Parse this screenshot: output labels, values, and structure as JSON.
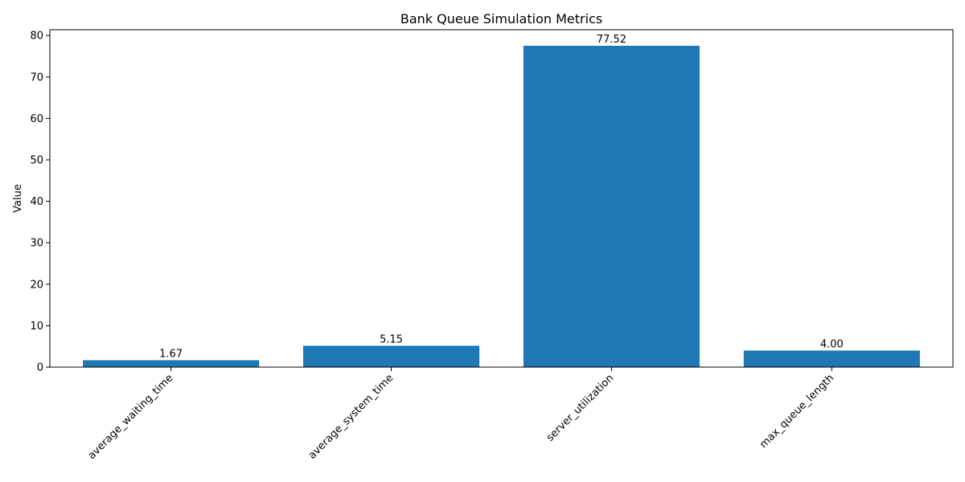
{
  "chart_data": {
    "type": "bar",
    "title": "Bank Queue Simulation Metrics",
    "xlabel": "",
    "ylabel": "Value",
    "categories": [
      "average_waiting_time",
      "average_system_time",
      "server_utilization",
      "max_queue_length"
    ],
    "values": [
      1.67,
      5.15,
      77.52,
      4.0
    ],
    "data_labels": [
      "1.67",
      "5.15",
      "77.52",
      "4.00"
    ],
    "yticks": [
      0,
      10,
      20,
      30,
      40,
      50,
      60,
      70,
      80
    ],
    "ylim": [
      0,
      81.4
    ],
    "grid": false,
    "bar_color": "#1f77b4"
  }
}
